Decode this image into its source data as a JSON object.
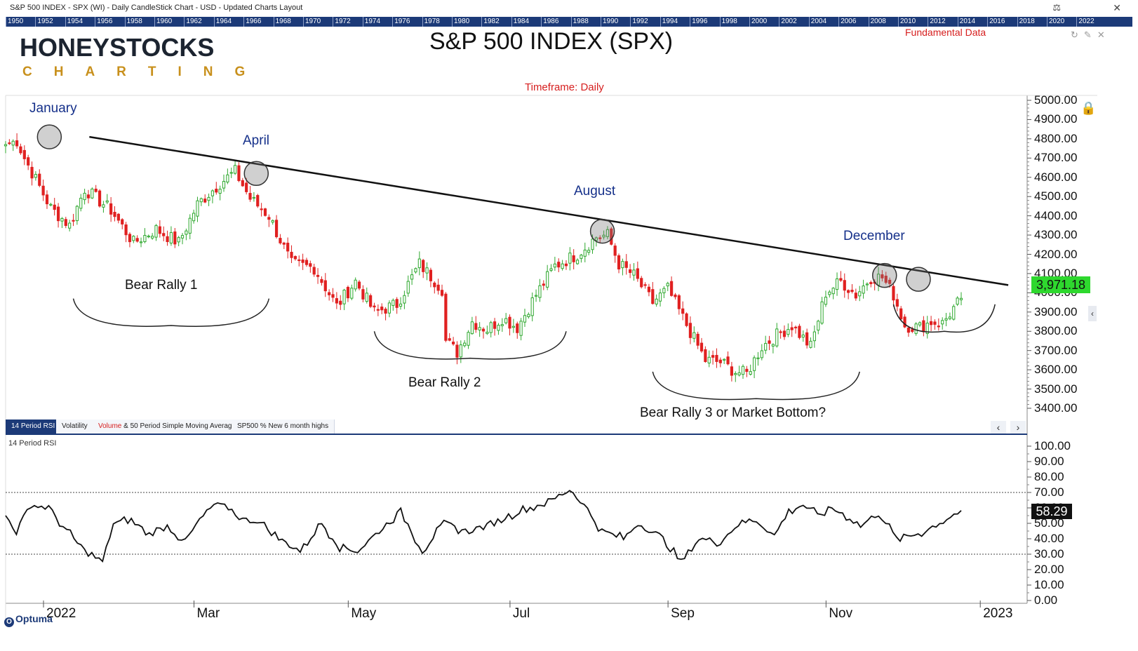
{
  "window": {
    "title": "S&P 500 INDEX - SPX (WI) - Daily CandleStick Chart - USD - Updated Charts Layout",
    "year_ruler": [
      "1950",
      "1952",
      "1954",
      "1956",
      "1958",
      "1960",
      "1962",
      "1964",
      "1966",
      "1968",
      "1970",
      "1972",
      "1974",
      "1976",
      "1978",
      "1980",
      "1982",
      "1984",
      "1986",
      "1988",
      "1990",
      "1992",
      "1994",
      "1996",
      "1998",
      "2000",
      "2002",
      "2004",
      "2006",
      "2008",
      "2010",
      "2012",
      "2014",
      "2016",
      "2018",
      "2020",
      "2022"
    ]
  },
  "logo": {
    "main": "HONEYSTOCKS",
    "sub": "CHARTING"
  },
  "header": {
    "chart_title": "S&P 500 INDEX (SPX)",
    "fundamental_link": "Fundamental Data",
    "timeframe": "Timeframe: Daily"
  },
  "tabs": {
    "rsi": "14 Period RSI",
    "volatility": "Volatility",
    "volume_red": "Volume",
    "volume_rest": " & 50 Period Simple Moving Average",
    "newhighs": "SP500 % New 6 month highs"
  },
  "panel": {
    "rsi_label": "14 Period RSI"
  },
  "footer": {
    "brand": "Optuma"
  },
  "last": {
    "price": "3,971.18",
    "rsi": "58.29"
  },
  "colors": {
    "up": "#2ea82e",
    "down": "#e02020",
    "accent": "#1c3a78",
    "highlight": "#2ed82e"
  },
  "chart_data": [
    {
      "type": "candlestick",
      "title": "S&P 500 INDEX (SPX)",
      "ylim": [
        3350,
        5000
      ],
      "y_ticks": [
        "5000.00",
        "4900.00",
        "4800.00",
        "4700.00",
        "4600.00",
        "4500.00",
        "4400.00",
        "4300.00",
        "4200.00",
        "4100.00",
        "4000.00",
        "3900.00",
        "3800.00",
        "3700.00",
        "3600.00",
        "3500.00",
        "3400.00"
      ],
      "y_tick_values": [
        5000,
        4900,
        4800,
        4700,
        4600,
        4500,
        4400,
        4300,
        4200,
        4100,
        4000,
        3900,
        3800,
        3700,
        3600,
        3500,
        3400
      ],
      "x_labels": [
        "2022",
        "Mar",
        "May",
        "Jul",
        "Sep",
        "Nov",
        "2023"
      ],
      "x_label_positions_trading_days": [
        0,
        40,
        81,
        124,
        166,
        208,
        249
      ],
      "close_keypoints": [
        [
          0,
          4770
        ],
        [
          3,
          4790
        ],
        [
          5,
          4700
        ],
        [
          12,
          4440
        ],
        [
          17,
          4350
        ],
        [
          21,
          4540
        ],
        [
          28,
          4430
        ],
        [
          34,
          4260
        ],
        [
          40,
          4330
        ],
        [
          46,
          4260
        ],
        [
          51,
          4460
        ],
        [
          57,
          4570
        ],
        [
          61,
          4630
        ],
        [
          65,
          4490
        ],
        [
          70,
          4400
        ],
        [
          76,
          4150
        ],
        [
          82,
          4130
        ],
        [
          88,
          3930
        ],
        [
          93,
          4060
        ],
        [
          98,
          3900
        ],
        [
          104,
          3940
        ],
        [
          110,
          4150
        ],
        [
          116,
          4020
        ],
        [
          117,
          3750
        ],
        [
          120,
          3690
        ],
        [
          124,
          3850
        ],
        [
          128,
          3810
        ],
        [
          132,
          3870
        ],
        [
          136,
          3820
        ],
        [
          141,
          3990
        ],
        [
          146,
          4140
        ],
        [
          152,
          4200
        ],
        [
          157,
          4290
        ],
        [
          160,
          4300
        ],
        [
          163,
          4150
        ],
        [
          167,
          4090
        ],
        [
          172,
          3950
        ],
        [
          176,
          4020
        ],
        [
          180,
          3870
        ],
        [
          186,
          3650
        ],
        [
          190,
          3640
        ],
        [
          194,
          3590
        ],
        [
          197,
          3580
        ],
        [
          201,
          3720
        ],
        [
          205,
          3780
        ],
        [
          209,
          3830
        ],
        [
          214,
          3720
        ],
        [
          218,
          4000
        ],
        [
          222,
          4060
        ],
        [
          226,
          3990
        ],
        [
          230,
          4080
        ],
        [
          233,
          4080
        ],
        [
          236,
          3990
        ],
        [
          239,
          3830
        ],
        [
          243,
          3820
        ],
        [
          246,
          3850
        ],
        [
          249,
          3840
        ],
        [
          252,
          3920
        ],
        [
          254,
          3971
        ]
      ],
      "series": [
        {
          "name": "Price",
          "values": "sampled from close_keypoints"
        }
      ],
      "trendline": {
        "from": [
          12,
          4810
        ],
        "to": [
          268,
          4040
        ]
      },
      "peaks": [
        {
          "label": "January",
          "day": 12,
          "price": 4810
        },
        {
          "label": "April",
          "day": 67,
          "price": 4620
        },
        {
          "label": "August",
          "day": 159,
          "price": 4320
        },
        {
          "label": "December",
          "day": 234,
          "price": 4090
        },
        {
          "label": "",
          "day": 243,
          "price": 4070
        }
      ],
      "rallies": [
        {
          "label": "Bear Rally 1",
          "start": 18,
          "end": 70,
          "depth": 3830
        },
        {
          "label": "Bear Rally 2",
          "start": 98,
          "end": 149,
          "depth": 3660
        },
        {
          "label": "Bear Rally 3 or Market Bottom?",
          "start": 172,
          "end": 227,
          "depth": 3450
        },
        {
          "label": "",
          "start": 236,
          "end": 263,
          "depth": 3800
        }
      ],
      "last_price": 3971.18
    },
    {
      "type": "line",
      "title": "14 Period RSI",
      "ylim": [
        0,
        100
      ],
      "y_ticks": [
        "100.00",
        "90.00",
        "80.00",
        "70.00",
        "60.00",
        "50.00",
        "40.00",
        "30.00",
        "20.00",
        "10.00",
        "0.00"
      ],
      "y_tick_values": [
        100,
        90,
        80,
        70,
        60,
        50,
        40,
        30,
        20,
        10,
        0
      ],
      "reference_lines": [
        70,
        30
      ],
      "rsi_keypoints": [
        [
          0,
          55
        ],
        [
          3,
          45
        ],
        [
          7,
          62
        ],
        [
          12,
          60
        ],
        [
          17,
          45
        ],
        [
          22,
          32
        ],
        [
          27,
          25
        ],
        [
          30,
          50
        ],
        [
          35,
          52
        ],
        [
          40,
          43
        ],
        [
          45,
          48
        ],
        [
          50,
          38
        ],
        [
          54,
          52
        ],
        [
          58,
          62
        ],
        [
          62,
          60
        ],
        [
          66,
          52
        ],
        [
          70,
          52
        ],
        [
          76,
          40
        ],
        [
          82,
          32
        ],
        [
          88,
          50
        ],
        [
          93,
          35
        ],
        [
          98,
          32
        ],
        [
          104,
          45
        ],
        [
          110,
          58
        ],
        [
          116,
          32
        ],
        [
          122,
          50
        ],
        [
          128,
          45
        ],
        [
          134,
          48
        ],
        [
          140,
          55
        ],
        [
          146,
          60
        ],
        [
          152,
          65
        ],
        [
          157,
          72
        ],
        [
          160,
          65
        ],
        [
          166,
          45
        ],
        [
          172,
          40
        ],
        [
          176,
          50
        ],
        [
          182,
          42
        ],
        [
          188,
          25
        ],
        [
          193,
          40
        ],
        [
          199,
          38
        ],
        [
          204,
          50
        ],
        [
          209,
          52
        ],
        [
          214,
          42
        ],
        [
          218,
          58
        ],
        [
          222,
          62
        ],
        [
          226,
          55
        ],
        [
          230,
          60
        ],
        [
          234,
          55
        ],
        [
          238,
          48
        ],
        [
          243,
          57
        ],
        [
          248,
          40
        ],
        [
          252,
          42
        ],
        [
          256,
          45
        ],
        [
          262,
          53
        ],
        [
          266,
          58
        ]
      ],
      "last_value": 58.29
    }
  ]
}
